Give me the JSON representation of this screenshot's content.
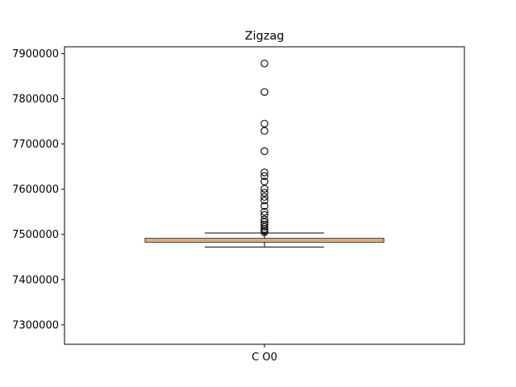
{
  "chart_data": {
    "type": "box",
    "title": "Zigzag",
    "xlabel": "",
    "ylabel": "",
    "categories": [
      "C O0"
    ],
    "ylim": [
      7257000,
      7915000
    ],
    "yticks": [
      7300000,
      7400000,
      7500000,
      7600000,
      7700000,
      7800000,
      7900000
    ],
    "ytick_labels": [
      "7300000",
      "7400000",
      "7500000",
      "7600000",
      "7700000",
      "7800000",
      "7900000"
    ],
    "grid": false,
    "box": {
      "whisker_low": 7472000,
      "q1": 7483000,
      "median": 7487000,
      "q3": 7491000,
      "whisker_high": 7503000,
      "outliers": [
        7878000,
        7815000,
        7745000,
        7729000,
        7684000,
        7637000,
        7629000,
        7617000,
        7601000,
        7592000,
        7583000,
        7575000,
        7563000,
        7550000,
        7543000,
        7533000,
        7527000,
        7522000,
        7517000,
        7512000,
        7508000,
        7505000
      ]
    },
    "colors": {
      "median": "#ff7f0e",
      "box_edge": "#000000",
      "outlier_edge": "#000000"
    }
  }
}
